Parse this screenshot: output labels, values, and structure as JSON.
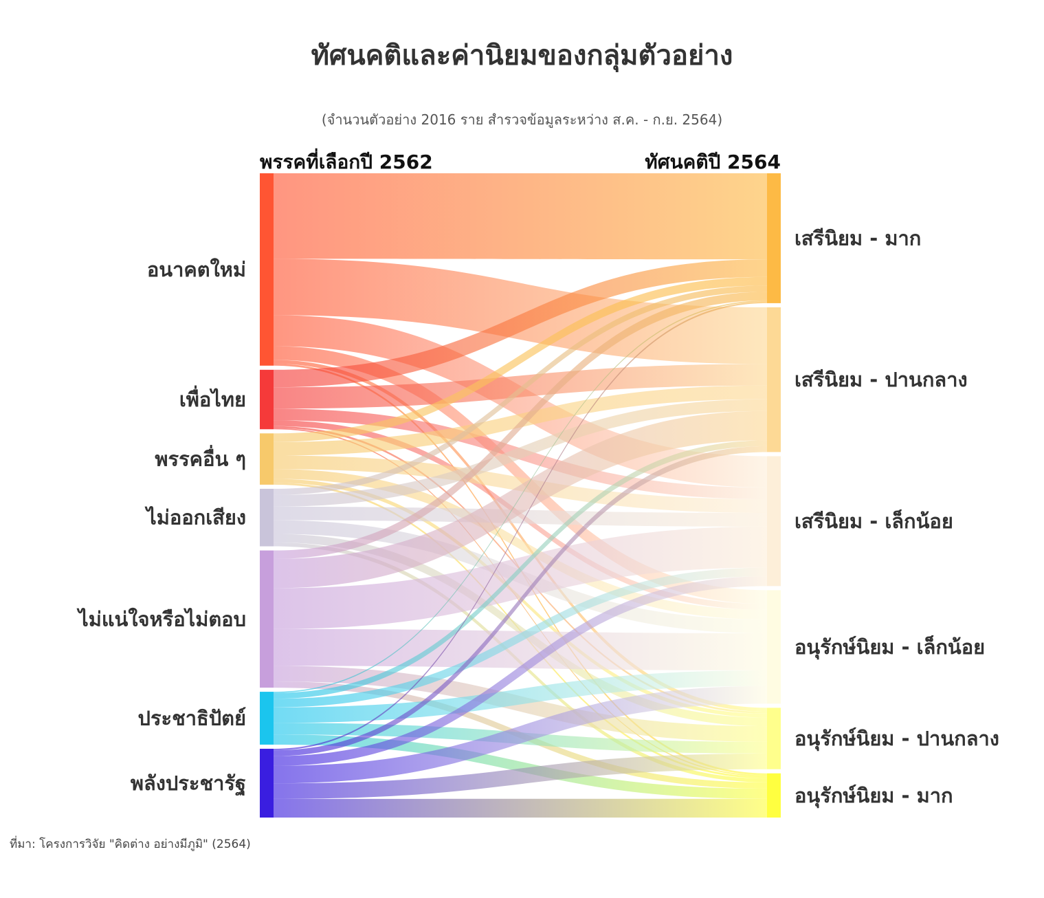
{
  "title": "ทัศนคติและค่านิยมของกลุ่มตัวอย่าง",
  "subtitle": "(จำนวนตัวอย่าง 2016 ราย สำรวจข้อมูลระหว่าง ส.ค. - ก.ย. 2564)",
  "left_header": "พรรคที่เลือกปี 2562",
  "right_header": "ทัศนคติปี 2564",
  "source": "ที่มา: โครงการวิจัย \"คิดต่าง อย่างมีภูมิ\" (2564)",
  "chart_data": {
    "type": "sankey",
    "sources": [
      {
        "name": "อนาคตใหม่",
        "color": "#ff5533"
      },
      {
        "name": "เพื่อไทย",
        "color": "#f53a3a"
      },
      {
        "name": "พรรคอื่น ๆ",
        "color": "#f7c96b"
      },
      {
        "name": "ไม่ออกเสียง",
        "color": "#c9c4da"
      },
      {
        "name": "ไม่แน่ใจหรือไม่ตอบ",
        "color": "#c79fdc"
      },
      {
        "name": "ประชาธิปัตย์",
        "color": "#1bc5ee"
      },
      {
        "name": "พลังประชารัฐ",
        "color": "#3a1ee0"
      }
    ],
    "targets": [
      {
        "name": "เสรีนิยม - มาก",
        "color": "#fdba45"
      },
      {
        "name": "เสรีนิยม - ปานกลาง",
        "color": "#fdd995"
      },
      {
        "name": "เสรีนิยม - เล็กน้อย",
        "color": "#fdefd9"
      },
      {
        "name": "อนุรักษ์นิยม - เล็กน้อย",
        "color": "#fffce2"
      },
      {
        "name": "อนุรักษ์นิยม - ปานกลาง",
        "color": "#ffff8c"
      },
      {
        "name": "อนุรักษ์นิยม - มาก",
        "color": "#ffff40"
      }
    ],
    "links": [
      [
        220,
        145,
        80,
        35,
        10,
        5
      ],
      [
        45,
        55,
        30,
        15,
        5,
        3
      ],
      [
        22,
        35,
        35,
        25,
        10,
        5
      ],
      [
        16,
        30,
        35,
        35,
        22,
        10
      ],
      [
        22,
        75,
        105,
        95,
        40,
        16
      ],
      [
        3,
        15,
        22,
        40,
        30,
        26
      ],
      [
        4,
        15,
        25,
        45,
        40,
        48
      ]
    ]
  }
}
